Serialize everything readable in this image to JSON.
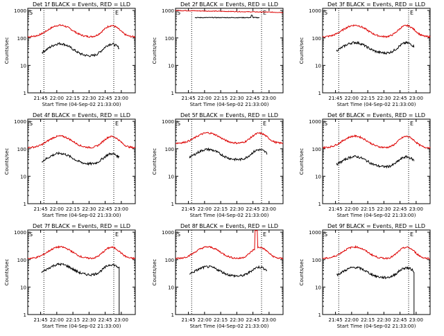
{
  "chart_data": {
    "type": "line",
    "panels": [
      {
        "title": "Det 1f BLACK = Events, RED = LLD",
        "red": {
          "amp": 180,
          "base": 110
        },
        "black": {
          "amp": 40,
          "base": 22
        },
        "black_end_drop": false,
        "red_spike": false,
        "flat": false
      },
      {
        "title": "Det 2f BLACK = Events, RED = LLD",
        "red": {
          "amp": 0,
          "base": 1000
        },
        "black": {
          "amp": 0,
          "base": 550
        },
        "black_end_drop": false,
        "red_spike": false,
        "flat": true
      },
      {
        "title": "Det 3f BLACK = Events, RED = LLD",
        "red": {
          "amp": 180,
          "base": 110
        },
        "black": {
          "amp": 40,
          "base": 28
        },
        "black_end_drop": false,
        "red_spike": false,
        "flat": false
      },
      {
        "title": "Det 4f BLACK = Events, RED = LLD",
        "red": {
          "amp": 180,
          "base": 110
        },
        "black": {
          "amp": 40,
          "base": 28
        },
        "black_end_drop": false,
        "red_spike": false,
        "flat": false
      },
      {
        "title": "Det 5f BLACK = Events, RED = LLD",
        "red": {
          "amp": 220,
          "base": 160
        },
        "black": {
          "amp": 55,
          "base": 40
        },
        "black_end_drop": false,
        "red_spike": false,
        "flat": false
      },
      {
        "title": "Det 6f BLACK = Events, RED = LLD",
        "red": {
          "amp": 180,
          "base": 110
        },
        "black": {
          "amp": 30,
          "base": 22
        },
        "black_end_drop": false,
        "red_spike": false,
        "flat": false
      },
      {
        "title": "Det 7f BLACK = Events, RED = LLD",
        "red": {
          "amp": 180,
          "base": 110
        },
        "black": {
          "amp": 40,
          "base": 28
        },
        "black_end_drop": true,
        "red_spike": false,
        "flat": false
      },
      {
        "title": "Det 8f BLACK = Events, RED = LLD",
        "red": {
          "amp": 180,
          "base": 110
        },
        "black": {
          "amp": 30,
          "base": 25
        },
        "black_end_drop": false,
        "red_spike": true,
        "flat": false
      },
      {
        "title": "Det 9f BLACK = Events, RED = LLD",
        "red": {
          "amp": 180,
          "base": 110
        },
        "black": {
          "amp": 30,
          "base": 22
        },
        "black_end_drop": true,
        "red_spike": false,
        "flat": false
      }
    ],
    "xlabel": "Start Time (04-Sep-02 21:33:00)",
    "ylabel": "Counts/sec",
    "xticks": [
      "21:45",
      "22:00",
      "22:15",
      "22:30",
      "22:45",
      "23:00"
    ],
    "xtick_minutes": [
      12,
      27,
      42,
      57,
      72,
      87
    ],
    "xlim_minutes": [
      0,
      100
    ],
    "vlines_minutes": [
      15,
      80
    ],
    "yticks": [
      "1",
      "10",
      "100",
      "1000"
    ],
    "ylim": [
      1,
      1200
    ],
    "yscale": "log",
    "corner_marks": {
      "left": "S",
      "right": "E"
    },
    "series_colors": {
      "red": "#dd0000",
      "black": "#000000"
    },
    "series": [
      {
        "name": "Events",
        "color": "#000000"
      },
      {
        "name": "LLD",
        "color": "#dd0000"
      }
    ]
  }
}
